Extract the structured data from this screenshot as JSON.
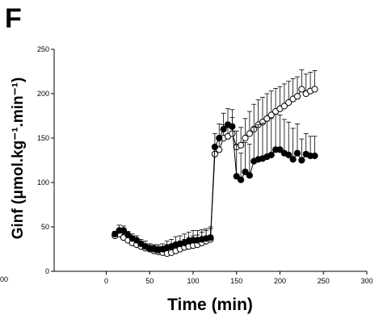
{
  "panel_label": "F",
  "stray_label": "00",
  "chart_data": {
    "type": "line",
    "xlabel": "Time (min)",
    "ylabel": "Ginf (μmol.kg⁻¹.min⁻¹)",
    "xlim": [
      -60,
      300
    ],
    "ylim": [
      0,
      250
    ],
    "xticks": [
      0,
      50,
      100,
      150,
      200,
      250,
      300
    ],
    "yticks": [
      0,
      50,
      100,
      150,
      200,
      250
    ],
    "grid": false,
    "legend": "none",
    "series": [
      {
        "marker": "filled-circle",
        "color": "#000000",
        "x": [
          10,
          15,
          20,
          25,
          30,
          35,
          40,
          45,
          50,
          55,
          60,
          65,
          70,
          75,
          80,
          85,
          90,
          95,
          100,
          105,
          110,
          115,
          120,
          125,
          130,
          135,
          140,
          145,
          150,
          155,
          160,
          165,
          170,
          175,
          180,
          185,
          190,
          195,
          200,
          205,
          210,
          215,
          220,
          225,
          230,
          235,
          240
        ],
        "y": [
          42,
          46,
          46,
          41,
          37,
          35,
          31,
          28,
          26,
          25,
          24,
          25,
          27,
          28,
          30,
          31,
          32,
          34,
          35,
          35,
          36,
          37,
          38,
          140,
          150,
          160,
          165,
          163,
          107,
          103,
          112,
          108,
          124,
          126,
          127,
          129,
          131,
          137,
          137,
          133,
          131,
          126,
          133,
          125,
          132,
          130,
          130
        ],
        "err": [
          3,
          6,
          5,
          4,
          5,
          5,
          5,
          6,
          5,
          5,
          6,
          6,
          7,
          8,
          9,
          9,
          10,
          10,
          11,
          11,
          11,
          11,
          12,
          15,
          16,
          18,
          18,
          19,
          35,
          30,
          33,
          35,
          38,
          39,
          40,
          40,
          41,
          40,
          39,
          38,
          37,
          35,
          33,
          24,
          23,
          22,
          22
        ]
      },
      {
        "marker": "open-circle",
        "color": "#000000",
        "x": [
          10,
          15,
          20,
          25,
          30,
          35,
          40,
          45,
          50,
          55,
          60,
          65,
          70,
          75,
          80,
          85,
          90,
          95,
          100,
          105,
          110,
          115,
          120,
          125,
          130,
          135,
          140,
          145,
          150,
          155,
          160,
          165,
          170,
          175,
          180,
          185,
          190,
          195,
          200,
          205,
          210,
          215,
          220,
          225,
          230,
          235,
          240
        ],
        "y": [
          40,
          42,
          38,
          35,
          32,
          30,
          28,
          26,
          25,
          23,
          22,
          21,
          20,
          21,
          23,
          25,
          27,
          28,
          29,
          30,
          32,
          34,
          36,
          132,
          137,
          150,
          152,
          155,
          140,
          142,
          150,
          155,
          160,
          165,
          168,
          172,
          176,
          180,
          183,
          186,
          190,
          194,
          197,
          205,
          200,
          203,
          205
        ],
        "err": [
          3,
          4,
          4,
          4,
          5,
          5,
          5,
          5,
          6,
          6,
          6,
          6,
          6,
          7,
          8,
          9,
          9,
          10,
          11,
          11,
          12,
          12,
          12,
          10,
          12,
          15,
          16,
          18,
          18,
          20,
          22,
          25,
          28,
          28,
          28,
          28,
          27,
          26,
          25,
          25,
          24,
          23,
          22,
          22,
          22,
          21,
          21
        ]
      }
    ]
  }
}
